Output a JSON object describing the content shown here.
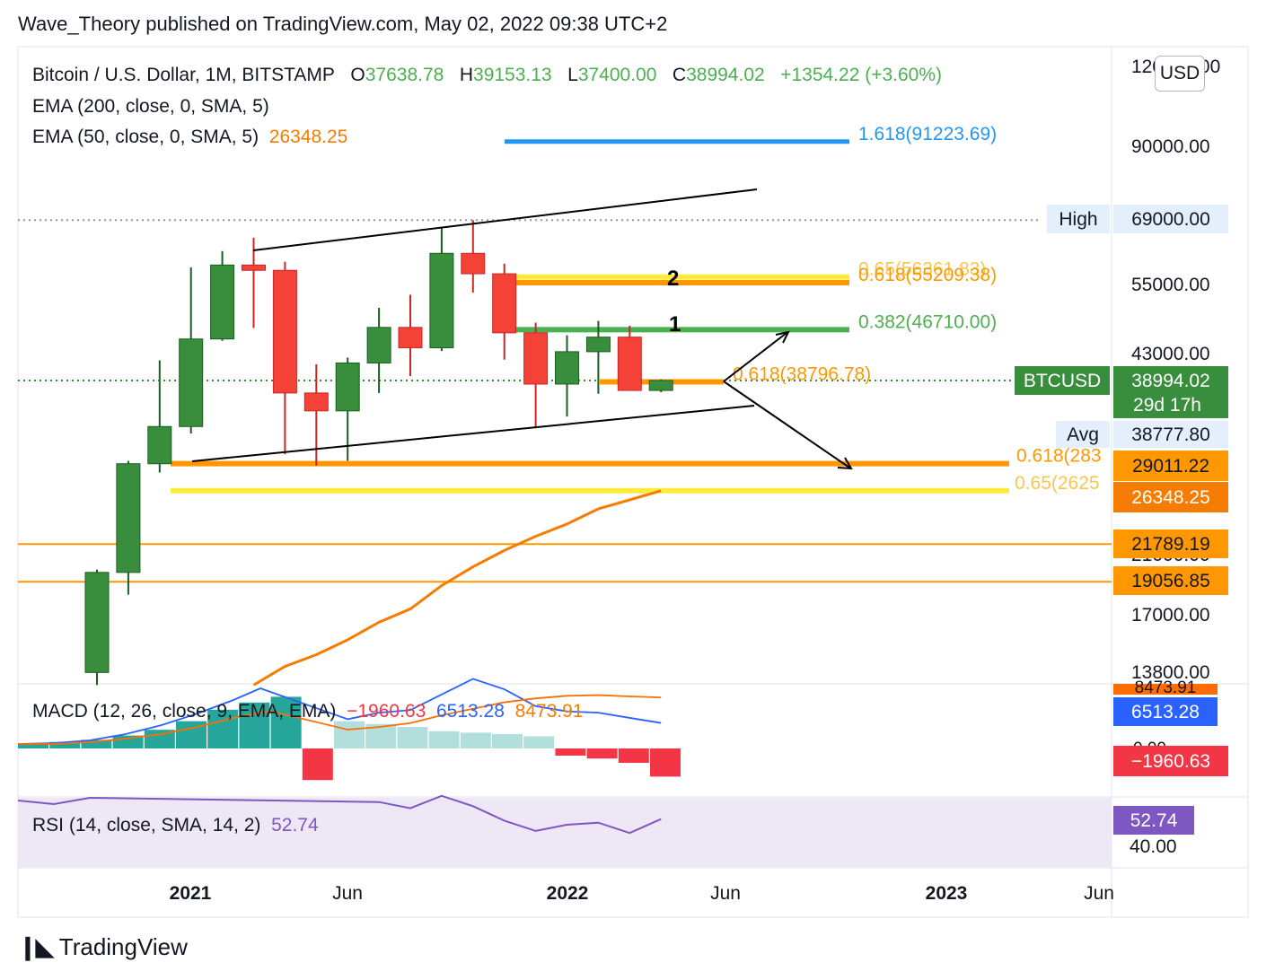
{
  "header": "Wave_Theory published on TradingView.com, May 02, 2022 09:38 UTC+2",
  "footer": {
    "logo_text": "TradingView"
  },
  "currency_button": "USD",
  "legend": {
    "symbol": "Bitcoin / U.S. Dollar, 1M, BITSTAMP",
    "o_label": "O",
    "o": "37638.78",
    "h_label": "H",
    "h": "39153.13",
    "l_label": "L",
    "l": "37400.00",
    "c_label": "C",
    "c": "38994.02",
    "change": "+1354.22 (+3.60%)",
    "ema200": "EMA (200, close, 0, SMA, 5)",
    "ema50": "EMA (50, close, 0, SMA, 5)",
    "ema50_value": "26348.25",
    "macd": "MACD (12, 26, close, 9, EMA, EMA)",
    "macd_hist": "−1960.63",
    "macd_line": "6513.28",
    "macd_signal": "8473.91",
    "rsi": "RSI (14, close, SMA, 14, 2)",
    "rsi_value": "52.74"
  },
  "colors": {
    "up": "#388e3c",
    "down": "#f44336",
    "ema50": "#f57c00",
    "macd_line": "#2962ff",
    "signal_line": "#ff6d00",
    "rsi": "#7e57c2",
    "fib_blue": "#2196f3",
    "fib_orange": "#ff9800",
    "fib_yellow": "#ffeb3b",
    "fib_green": "#4caf50"
  },
  "chart_data": {
    "type": "candlestick",
    "scale": "log",
    "symbol": "BTCUSD",
    "interval": "1M",
    "x_axis_labels": [
      "2021",
      "Jun",
      "2022",
      "Jun",
      "2023",
      "Jun"
    ],
    "y_axis_ticks": [
      "120000.00",
      "90000.00",
      "69000.00",
      "55000.00",
      "43000.00",
      "21000.00",
      "17000.00",
      "13800.00"
    ],
    "candles": [
      {
        "t": "2020-11",
        "o": 13800,
        "h": 19900,
        "l": 13200,
        "c": 19700
      },
      {
        "t": "2020-12",
        "o": 19700,
        "h": 29300,
        "l": 18200,
        "c": 29000
      },
      {
        "t": "2021-01",
        "o": 29000,
        "h": 41900,
        "l": 28100,
        "c": 33100
      },
      {
        "t": "2021-02",
        "o": 33100,
        "h": 58300,
        "l": 32300,
        "c": 45200
      },
      {
        "t": "2021-03",
        "o": 45200,
        "h": 61800,
        "l": 44900,
        "c": 58800
      },
      {
        "t": "2021-04",
        "o": 58800,
        "h": 64800,
        "l": 47000,
        "c": 57700
      },
      {
        "t": "2021-05",
        "o": 57700,
        "h": 59500,
        "l": 30000,
        "c": 37300
      },
      {
        "t": "2021-06",
        "o": 37300,
        "h": 41300,
        "l": 28800,
        "c": 35000
      },
      {
        "t": "2021-07",
        "o": 35000,
        "h": 42300,
        "l": 29300,
        "c": 41500
      },
      {
        "t": "2021-08",
        "o": 41500,
        "h": 50500,
        "l": 37300,
        "c": 47100
      },
      {
        "t": "2021-09",
        "o": 47100,
        "h": 52900,
        "l": 39600,
        "c": 43800
      },
      {
        "t": "2021-10",
        "o": 43800,
        "h": 67000,
        "l": 43300,
        "c": 61300
      },
      {
        "t": "2021-11",
        "o": 61300,
        "h": 69000,
        "l": 53300,
        "c": 57000
      },
      {
        "t": "2021-12",
        "o": 57000,
        "h": 59100,
        "l": 42000,
        "c": 46200
      },
      {
        "t": "2022-01",
        "o": 46200,
        "h": 47900,
        "l": 32900,
        "c": 38500
      },
      {
        "t": "2022-02",
        "o": 38500,
        "h": 45800,
        "l": 34300,
        "c": 43200
      },
      {
        "t": "2022-03",
        "o": 43200,
        "h": 48200,
        "l": 37200,
        "c": 45500
      },
      {
        "t": "2022-04",
        "o": 45500,
        "h": 47400,
        "l": 37700,
        "c": 37638.78
      },
      {
        "t": "2022-05",
        "o": 37638.78,
        "h": 39153.13,
        "l": 37400,
        "c": 38994.02
      }
    ],
    "ema50": [
      {
        "t": "2021-04",
        "v": 13200
      },
      {
        "t": "2021-05",
        "v": 14100
      },
      {
        "t": "2021-06",
        "v": 14700
      },
      {
        "t": "2021-07",
        "v": 15500
      },
      {
        "t": "2021-08",
        "v": 16500
      },
      {
        "t": "2021-09",
        "v": 17300
      },
      {
        "t": "2021-10",
        "v": 18800
      },
      {
        "t": "2021-11",
        "v": 20100
      },
      {
        "t": "2021-12",
        "v": 21300
      },
      {
        "t": "2022-01",
        "v": 22400
      },
      {
        "t": "2022-02",
        "v": 23400
      },
      {
        "t": "2022-03",
        "v": 24700
      },
      {
        "t": "2022-04",
        "v": 25500
      },
      {
        "t": "2022-05",
        "v": 26348.25
      }
    ],
    "fib_levels": [
      {
        "label": "1.618(91223.69)",
        "price": 91223.69,
        "color": "blue"
      },
      {
        "label": "0.65(56361.83)",
        "price": 56361.83,
        "color": "yellow"
      },
      {
        "label": "0.618(55209.38)",
        "price": 55209.38,
        "color": "orange"
      },
      {
        "label": "0.382(46710.00)",
        "price": 46710,
        "color": "green"
      },
      {
        "label": "0.618(38796.78)",
        "price": 38796.78,
        "color": "orange"
      },
      {
        "label": "0.618(283",
        "price": 29011.22,
        "color": "orange"
      },
      {
        "label": "0.65(2625",
        "price": 26348.25,
        "color": "yellow"
      }
    ],
    "horizontal_lines": [
      21789.19,
      19056.85
    ],
    "wave_labels": [
      "1",
      "2"
    ],
    "price_labels": [
      {
        "text": "High",
        "value": "69000.00"
      },
      {
        "text": "BTCUSD",
        "value": "38994.02",
        "sub": "29d 17h"
      },
      {
        "text": "Avg",
        "value": "38777.80"
      },
      {
        "value": "29011.22"
      },
      {
        "value": "26348.25"
      },
      {
        "value": "21789.19"
      },
      {
        "value": "19056.85"
      }
    ],
    "macd": {
      "axis_labels": [
        "8473.91",
        "0.00"
      ],
      "histogram": [
        350,
        450,
        600,
        900,
        1300,
        1900,
        2700,
        3200,
        3600,
        -2200,
        1900,
        1700,
        1500,
        1200,
        1100,
        1000,
        850,
        -500,
        -700,
        -1000,
        -1960.63
      ],
      "macd_line": [
        {
          "t": "2021-07",
          "v": 6800
        },
        {
          "t": "2021-08",
          "v": 7300
        },
        {
          "t": "2021-09",
          "v": 7500
        },
        {
          "t": "2021-10",
          "v": 8700
        },
        {
          "t": "2021-11",
          "v": 9900
        },
        {
          "t": "2021-12",
          "v": 9100
        },
        {
          "t": "2022-01",
          "v": 7800
        },
        {
          "t": "2022-02",
          "v": 7400
        },
        {
          "t": "2022-03",
          "v": 7300
        },
        {
          "t": "2022-04",
          "v": 6900
        },
        {
          "t": "2022-05",
          "v": 6513.28
        }
      ],
      "signal_line": [
        {
          "t": "2021-07",
          "v": 6000
        },
        {
          "t": "2021-08",
          "v": 6200
        },
        {
          "t": "2021-09",
          "v": 6500
        },
        {
          "t": "2021-10",
          "v": 7100
        },
        {
          "t": "2021-11",
          "v": 7600
        },
        {
          "t": "2021-12",
          "v": 8100
        },
        {
          "t": "2022-01",
          "v": 8400
        },
        {
          "t": "2022-02",
          "v": 8600
        },
        {
          "t": "2022-03",
          "v": 8650
        },
        {
          "t": "2022-04",
          "v": 8550
        },
        {
          "t": "2022-05",
          "v": 8473.91
        }
      ]
    },
    "rsi": {
      "axis_labels": [
        "52.74",
        "40.00"
      ],
      "values": [
        {
          "t": "2021-08",
          "v": 61
        },
        {
          "t": "2021-09",
          "v": 58
        },
        {
          "t": "2021-10",
          "v": 64
        },
        {
          "t": "2021-11",
          "v": 59
        },
        {
          "t": "2021-12",
          "v": 52
        },
        {
          "t": "2022-01",
          "v": 47
        },
        {
          "t": "2022-02",
          "v": 50
        },
        {
          "t": "2022-03",
          "v": 51
        },
        {
          "t": "2022-04",
          "v": 46
        },
        {
          "t": "2022-05",
          "v": 52.74
        }
      ]
    }
  }
}
